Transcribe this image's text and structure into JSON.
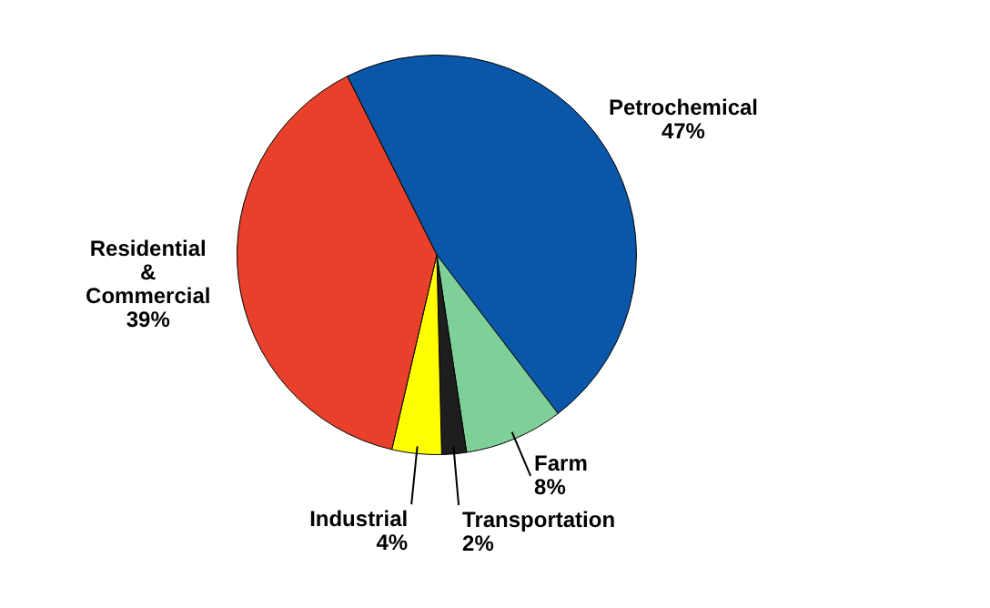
{
  "chart_data": {
    "type": "pie",
    "categories": [
      "Petrochemical",
      "Farm",
      "Transportation",
      "Industrial",
      "Residential & Commercial"
    ],
    "values": [
      47,
      8,
      2,
      4,
      39
    ],
    "value_labels": [
      "47%",
      "8%",
      "2%",
      "4%",
      "39%"
    ],
    "colors": [
      "#0a56a8",
      "#7fcf98",
      "#1e1e1e",
      "#ffff00",
      "#e8402a"
    ]
  }
}
